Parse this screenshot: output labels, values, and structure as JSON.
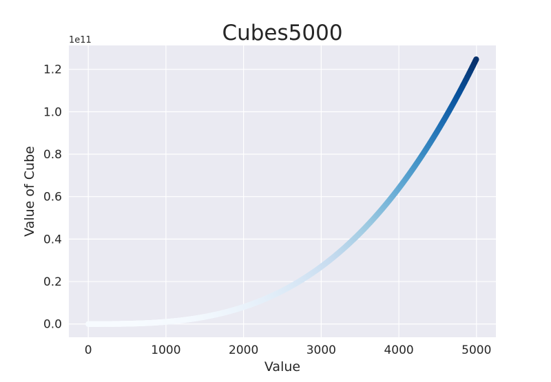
{
  "chart_data": {
    "type": "scatter",
    "title": "Cubes5000",
    "xlabel": "Value",
    "ylabel": "Value of Cube",
    "y_offset_label": "1e11",
    "x_range": [
      1,
      5000
    ],
    "y_function": "x^3",
    "xlim": [
      -250,
      5250
    ],
    "ylim": [
      -6250000000,
      131250000000
    ],
    "xticks": [
      0,
      1000,
      2000,
      3000,
      4000,
      5000
    ],
    "xtick_labels": [
      "0",
      "1000",
      "2000",
      "3000",
      "4000",
      "5000"
    ],
    "yticks": [
      0,
      20000000000,
      40000000000,
      60000000000,
      80000000000,
      100000000000,
      120000000000
    ],
    "ytick_labels": [
      "0.0",
      "0.2",
      "0.4",
      "0.6",
      "0.8",
      "1.0",
      "1.2"
    ],
    "colormap": "Blues",
    "color_start": "#f7fbff",
    "color_end": "#08306b",
    "background": "#eaeaf2",
    "grid": true
  }
}
